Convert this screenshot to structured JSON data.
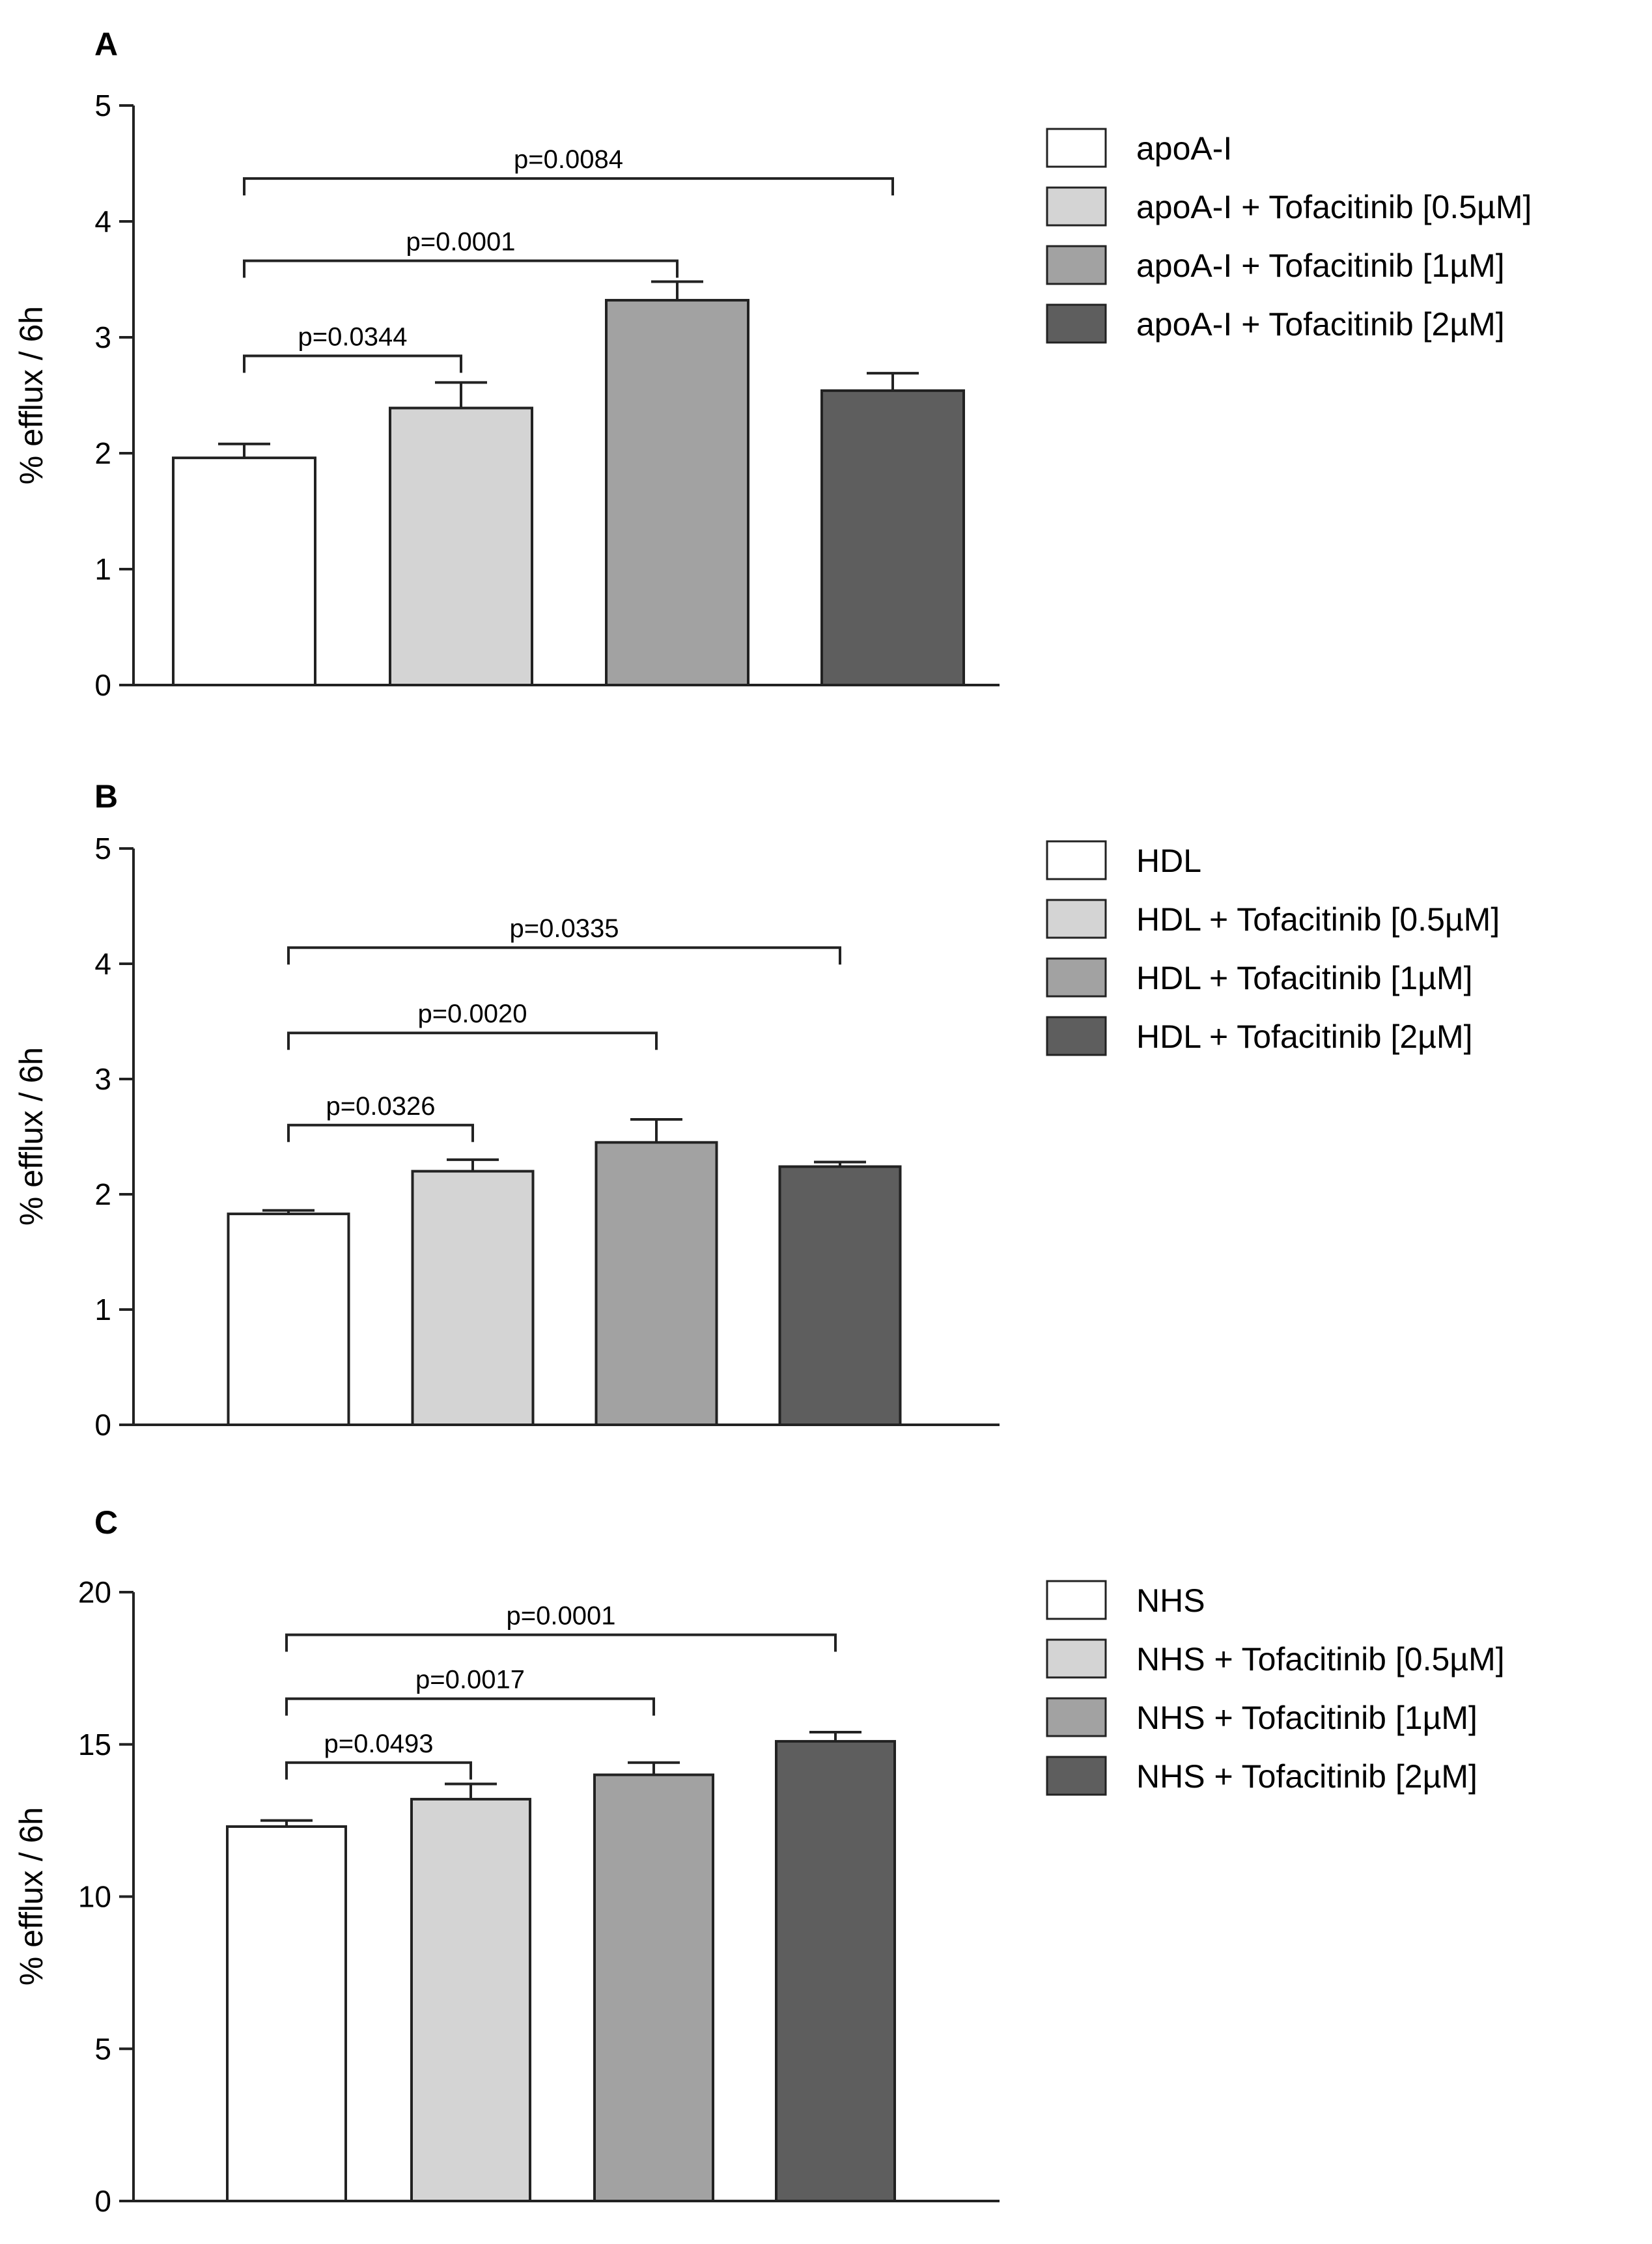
{
  "chart_data": [
    {
      "type": "bar",
      "panel": "A",
      "ylabel": "% efflux / 6h",
      "ylim": [
        0,
        5
      ],
      "yticks": [
        0,
        1,
        2,
        3,
        4,
        5
      ],
      "legend_position": "right",
      "categories": [
        "apoA-I",
        "apoA-I + Tofacitinib [0.5µM]",
        "apoA-I + Tofacitinib [1µM]",
        "apoA-I + Tofacitinib [2µM]"
      ],
      "values": [
        1.96,
        2.39,
        3.32,
        2.54
      ],
      "errors": [
        0.12,
        0.22,
        0.16,
        0.15
      ],
      "colors": [
        "#ffffff",
        "#d4d4d4",
        "#a2a2a2",
        "#5e5e5e"
      ],
      "comparisons": [
        {
          "from": 0,
          "to": 1,
          "label": "p=0.0344",
          "y": 2.84
        },
        {
          "from": 0,
          "to": 2,
          "label": "p=0.0001",
          "y": 3.66
        },
        {
          "from": 0,
          "to": 3,
          "label": "p=0.0084",
          "y": 4.37
        }
      ]
    },
    {
      "type": "bar",
      "panel": "B",
      "ylabel": "% efflux / 6h",
      "ylim": [
        0,
        5
      ],
      "yticks": [
        0,
        1,
        2,
        3,
        4,
        5
      ],
      "legend_position": "right",
      "categories": [
        "HDL",
        "HDL + Tofacitinib [0.5µM]",
        "HDL + Tofacitinib [1µM]",
        "HDL + Tofacitinib [2µM]"
      ],
      "values": [
        1.83,
        2.2,
        2.45,
        2.24
      ],
      "errors": [
        0.03,
        0.1,
        0.2,
        0.04
      ],
      "colors": [
        "#ffffff",
        "#d4d4d4",
        "#a2a2a2",
        "#5e5e5e"
      ],
      "comparisons": [
        {
          "from": 0,
          "to": 1,
          "label": "p=0.0326",
          "y": 2.6
        },
        {
          "from": 0,
          "to": 2,
          "label": "p=0.0020",
          "y": 3.4
        },
        {
          "from": 0,
          "to": 3,
          "label": "p=0.0335",
          "y": 4.14
        }
      ]
    },
    {
      "type": "bar",
      "panel": "C",
      "ylabel": "% efflux / 6h",
      "ylim": [
        0,
        20
      ],
      "yticks": [
        0,
        5,
        10,
        15,
        20
      ],
      "legend_position": "right",
      "categories": [
        "NHS",
        "NHS + Tofacitinib [0.5µM]",
        "NHS + Tofacitinib [1µM]",
        "NHS + Tofacitinib [2µM]"
      ],
      "values": [
        12.3,
        13.2,
        14.0,
        15.1
      ],
      "errors": [
        0.2,
        0.5,
        0.4,
        0.3
      ],
      "colors": [
        "#ffffff",
        "#d4d4d4",
        "#a2a2a2",
        "#5e5e5e"
      ],
      "comparisons": [
        {
          "from": 0,
          "to": 1,
          "label": "p=0.0493",
          "y": 14.4
        },
        {
          "from": 0,
          "to": 2,
          "label": "p=0.0017",
          "y": 16.5
        },
        {
          "from": 0,
          "to": 3,
          "label": "p=0.0001",
          "y": 18.6
        }
      ]
    }
  ]
}
